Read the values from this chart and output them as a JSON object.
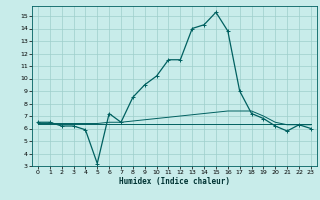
{
  "xlabel": "Humidex (Indice chaleur)",
  "background_color": "#c8ecea",
  "grid_color": "#9ecfcb",
  "line_color": "#006060",
  "xlim": [
    -0.5,
    23.5
  ],
  "ylim": [
    3,
    15.8
  ],
  "xticks": [
    0,
    1,
    2,
    3,
    4,
    5,
    6,
    7,
    8,
    9,
    10,
    11,
    12,
    13,
    14,
    15,
    16,
    17,
    18,
    19,
    20,
    21,
    22,
    23
  ],
  "yticks": [
    3,
    4,
    5,
    6,
    7,
    8,
    9,
    10,
    11,
    12,
    13,
    14,
    15
  ],
  "main_x": [
    0,
    1,
    2,
    3,
    4,
    5,
    6,
    7,
    8,
    9,
    10,
    11,
    12,
    13,
    14,
    15,
    16,
    17,
    18,
    19,
    20,
    21,
    22,
    23
  ],
  "main_y": [
    6.5,
    6.5,
    6.2,
    6.2,
    5.9,
    3.2,
    7.2,
    6.5,
    8.5,
    9.5,
    10.2,
    11.5,
    11.5,
    14.0,
    14.3,
    15.3,
    13.8,
    9.0,
    7.2,
    6.8,
    6.2,
    5.8,
    6.3,
    6.0
  ],
  "flat_x": [
    0,
    1,
    2,
    3,
    4,
    5,
    6,
    7,
    8,
    9,
    10,
    11,
    12,
    13,
    14,
    15,
    16,
    17,
    18,
    19,
    20,
    21,
    22,
    23
  ],
  "flat_y": [
    6.4,
    6.4,
    6.4,
    6.4,
    6.4,
    6.4,
    6.4,
    6.4,
    6.4,
    6.4,
    6.4,
    6.4,
    6.4,
    6.4,
    6.4,
    6.4,
    6.4,
    6.4,
    6.4,
    6.4,
    6.4,
    6.4,
    6.4,
    6.4
  ],
  "rise_x": [
    0,
    1,
    2,
    3,
    4,
    5,
    6,
    7,
    8,
    9,
    10,
    11,
    12,
    13,
    14,
    15,
    16,
    17,
    18,
    19,
    20,
    21,
    22,
    23
  ],
  "rise_y": [
    6.4,
    6.4,
    6.4,
    6.4,
    6.4,
    6.4,
    6.5,
    6.5,
    6.6,
    6.7,
    6.8,
    6.9,
    7.0,
    7.1,
    7.2,
    7.3,
    7.4,
    7.4,
    7.4,
    7.0,
    6.5,
    6.3,
    6.3,
    6.3
  ]
}
